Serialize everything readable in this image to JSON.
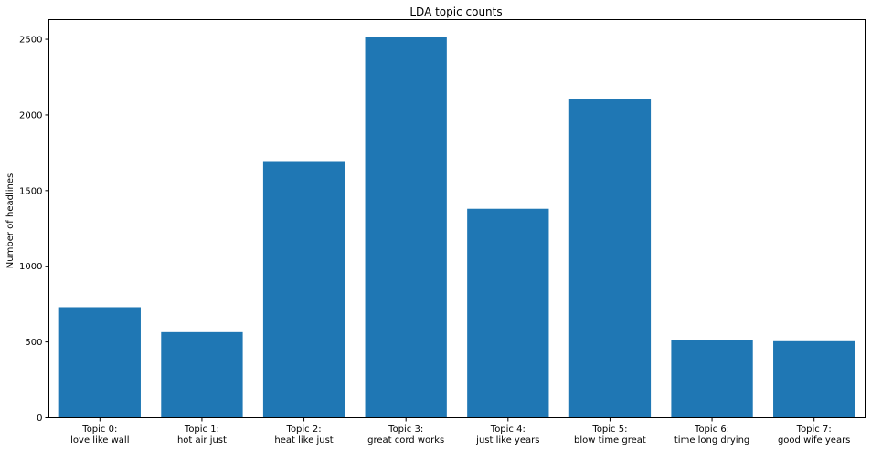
{
  "chart_data": {
    "type": "bar",
    "title": "LDA topic counts",
    "xlabel": "",
    "ylabel": "Number of headlines",
    "categories": [
      [
        "Topic 0:",
        "love like wall"
      ],
      [
        "Topic 1:",
        "hot air just"
      ],
      [
        "Topic 2:",
        "heat like just"
      ],
      [
        "Topic 3:",
        "great cord works"
      ],
      [
        "Topic 4:",
        "just like years"
      ],
      [
        "Topic 5:",
        "blow time great"
      ],
      [
        "Topic 6:",
        "time long drying"
      ],
      [
        "Topic 7:",
        "good wife years"
      ]
    ],
    "values": [
      730,
      565,
      1695,
      2515,
      1380,
      2105,
      510,
      505
    ],
    "ylim": [
      0,
      2630
    ],
    "yticks": [
      0,
      500,
      1000,
      1500,
      2000,
      2500
    ],
    "bar_color": "#1f77b4",
    "grid": false
  }
}
